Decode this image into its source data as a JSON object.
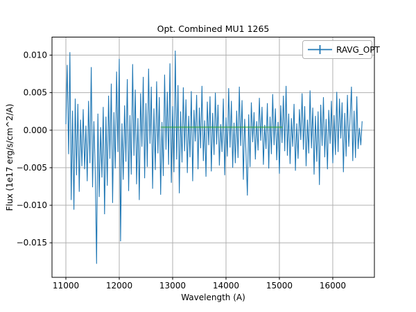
{
  "figure": {
    "background": "#ffffff"
  },
  "chart_data": {
    "type": "line",
    "title": "Opt. Combined MU1 1265",
    "xlabel": "Wavelength (A)",
    "ylabel": "Flux (1e17 erg/s/cm^2/A)",
    "grid": true,
    "legend": {
      "position": "upper right",
      "entries": [
        {
          "label": "RAVG_OPT",
          "color": "#1f77b4",
          "marker": "errorbar"
        }
      ]
    },
    "colors": {
      "series_blue": "#1f77b4",
      "series_green": "rgba(44,160,44,0.5)",
      "grid": "#b0b0b0",
      "spine": "#000000",
      "legend_edge": "#b0b0b0"
    },
    "axes": {
      "xlim": [
        10740,
        16780
      ],
      "ylim": [
        -0.0196,
        0.0124
      ],
      "xticks": [
        11000,
        12000,
        13000,
        14000,
        15000,
        16000
      ],
      "xtick_labels": [
        "11000",
        "12000",
        "13000",
        "14000",
        "15000",
        "16000"
      ],
      "yticks": [
        0.01,
        0.005,
        0.0,
        -0.005,
        -0.01,
        -0.015
      ],
      "ytick_labels": [
        "0.010",
        "0.005",
        "0.000",
        "−0.005",
        "−0.010",
        "−0.015"
      ]
    },
    "series": [
      {
        "name": "RAVG_OPT",
        "color": "#1f77b4",
        "x_start": 11000,
        "x_step": 25,
        "flux_scale": 0.001,
        "flux_milli": [
          0.8,
          8.7,
          -3.2,
          10.4,
          -9.3,
          2.6,
          -10.6,
          4.2,
          -6.0,
          3.5,
          -8.2,
          1.4,
          -4.8,
          2.8,
          -5.2,
          0.6,
          -6.8,
          3.9,
          -4.4,
          8.4,
          -7.6,
          1.2,
          -5.5,
          -17.8,
          2.2,
          -8.9,
          0.4,
          -6.3,
          3.1,
          -11.2,
          1.8,
          -7.4,
          4.6,
          -3.8,
          6.2,
          -9.7,
          2.4,
          -5.1,
          7.8,
          -2.9,
          9.5,
          -14.8,
          0.9,
          -6.6,
          3.3,
          -4.2,
          6.8,
          -8.1,
          2.0,
          -5.9,
          8.8,
          -3.4,
          5.4,
          -7.2,
          1.6,
          -9.3,
          4.9,
          -2.2,
          7.1,
          -6.4,
          3.6,
          -4.9,
          8.2,
          -1.8,
          5.8,
          -7.8,
          2.9,
          -5.3,
          6.5,
          -3.1,
          4.4,
          -8.6,
          1.1,
          -6.1,
          7.4,
          -2.6,
          5.1,
          -4.6,
          8.9,
          -7.0,
          3.2,
          -5.6,
          10.6,
          -3.9,
          6.0,
          -8.4,
          2.5,
          -4.3,
          5.7,
          -2.8,
          4.1,
          -5.7,
          1.9,
          -3.6,
          5.2,
          -6.8,
          2.7,
          -1.5,
          4.7,
          -5.2,
          3.0,
          -2.4,
          5.9,
          -4.1,
          1.3,
          -6.2,
          3.8,
          -2.0,
          4.5,
          -5.5,
          2.3,
          -3.3,
          5.0,
          -1.9,
          3.4,
          -4.7,
          0.8,
          -2.9,
          4.2,
          -6.0,
          1.7,
          -3.5,
          5.6,
          -2.3,
          3.9,
          -5.0,
          1.0,
          -4.4,
          2.6,
          -3.7,
          5.8,
          -2.1,
          4.0,
          -6.6,
          1.5,
          -3.0,
          -8.7,
          2.1,
          -4.9,
          3.7,
          -1.6,
          2.4,
          -3.9,
          1.2,
          -2.7,
          4.3,
          -1.4,
          3.1,
          -4.6,
          0.7,
          -2.5,
          3.6,
          -5.1,
          1.8,
          -3.2,
          4.8,
          -2.0,
          2.9,
          -4.0,
          1.1,
          -5.8,
          3.3,
          -1.7,
          4.6,
          -2.8,
          5.9,
          -3.4,
          2.2,
          -4.5,
          1.6,
          -2.2,
          3.5,
          -5.4,
          0.9,
          -3.8,
          2.8,
          -1.3,
          4.9,
          -2.6,
          3.2,
          -4.8,
          1.4,
          -3.1,
          5.3,
          -2.4,
          3.0,
          -5.9,
          1.9,
          -4.2,
          2.5,
          -7.3,
          3.4,
          -2.1,
          4.4,
          -3.6,
          1.5,
          -5.2,
          2.7,
          -1.8,
          3.9,
          -4.4,
          2.0,
          -3.3,
          5.1,
          -2.9,
          4.2,
          -1.1,
          3.7,
          -5.6,
          2.3,
          -3.5,
          4.7,
          -2.2,
          1.7,
          5.8,
          -4.1,
          2.6,
          -3.7,
          4.5,
          -2.5,
          0.3,
          -2.0,
          1.2
        ]
      },
      {
        "name": "unlabeled-flat-green-segment",
        "color": "rgba(44,160,44,0.5)",
        "x_start": 12780,
        "x_end": 15060,
        "value": 0.0004
      }
    ]
  }
}
